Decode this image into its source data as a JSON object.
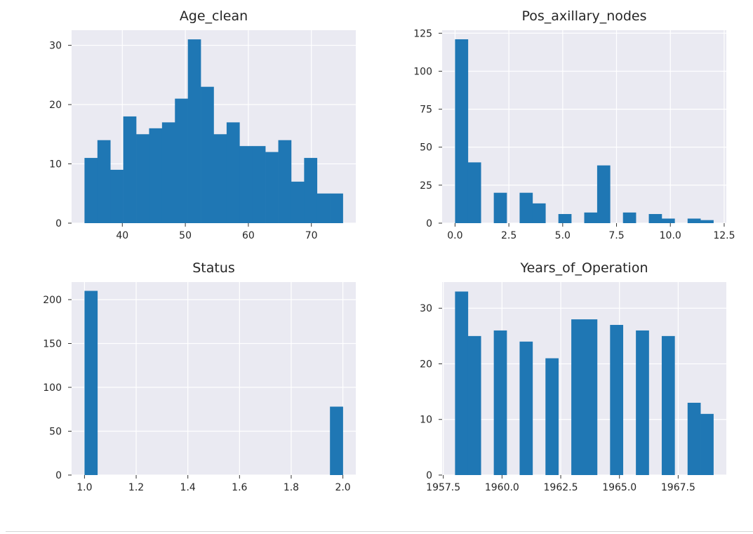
{
  "chart_data": [
    {
      "type": "bar",
      "title": "Age_clean",
      "xlabel": "",
      "ylabel": "",
      "grid": true,
      "xlim": [
        31.95,
        77.05
      ],
      "ylim": [
        0,
        32.55
      ],
      "xticks": [
        40,
        50,
        60,
        70
      ],
      "xtick_labels": [
        "40",
        "50",
        "60",
        "70"
      ],
      "yticks": [
        0,
        10,
        20,
        30
      ],
      "ytick_labels": [
        "0",
        "10",
        "20",
        "30"
      ],
      "bin_start": 34,
      "bin_width": 2.05,
      "values": [
        11,
        14,
        9,
        18,
        15,
        16,
        17,
        21,
        31,
        23,
        15,
        17,
        13,
        13,
        12,
        14,
        7,
        11,
        5,
        5
      ],
      "color": "#1f77b4"
    },
    {
      "type": "bar",
      "title": "Pos_axillary_nodes",
      "xlabel": "",
      "ylabel": "",
      "grid": true,
      "xlim": [
        -0.6,
        12.6
      ],
      "ylim": [
        0,
        127
      ],
      "xticks": [
        0,
        2.5,
        5,
        7.5,
        10,
        12.5
      ],
      "xtick_labels": [
        "0.0",
        "2.5",
        "5.0",
        "7.5",
        "10.0",
        "12.5"
      ],
      "yticks": [
        0,
        25,
        50,
        75,
        100,
        125
      ],
      "ytick_labels": [
        "0",
        "25",
        "50",
        "75",
        "100",
        "125"
      ],
      "bin_start": 0,
      "bin_width": 0.6,
      "values": [
        121,
        40,
        0,
        20,
        0,
        20,
        13,
        0,
        6,
        0,
        7,
        38,
        0,
        7,
        0,
        6,
        3,
        0,
        3,
        2
      ],
      "color": "#1f77b4"
    },
    {
      "type": "bar",
      "title": "Status",
      "xlabel": "",
      "ylabel": "",
      "grid": true,
      "xlim": [
        0.95,
        2.05
      ],
      "ylim": [
        0,
        220
      ],
      "xticks": [
        1.0,
        1.2,
        1.4,
        1.6,
        1.8,
        2.0
      ],
      "xtick_labels": [
        "1.0",
        "1.2",
        "1.4",
        "1.6",
        "1.8",
        "2.0"
      ],
      "yticks": [
        0,
        50,
        100,
        150,
        200
      ],
      "ytick_labels": [
        "0",
        "50",
        "100",
        "150",
        "200"
      ],
      "bin_start": 1,
      "bin_width": 0.05,
      "values": [
        210,
        0,
        0,
        0,
        0,
        0,
        0,
        0,
        0,
        0,
        0,
        0,
        0,
        0,
        0,
        0,
        0,
        0,
        0,
        78
      ],
      "color": "#1f77b4"
    },
    {
      "type": "bar",
      "title": "Years_of_Operation",
      "xlabel": "",
      "ylabel": "",
      "grid": true,
      "xlim": [
        1957.45,
        1969.55
      ],
      "ylim": [
        0,
        34.7
      ],
      "xticks": [
        1957.5,
        1960,
        1962.5,
        1965,
        1967.5
      ],
      "xtick_labels": [
        "1957.5",
        "1960.0",
        "1962.5",
        "1965.0",
        "1967.5"
      ],
      "yticks": [
        0,
        10,
        20,
        30
      ],
      "ytick_labels": [
        "0",
        "10",
        "20",
        "30"
      ],
      "bin_start": 1958,
      "bin_width": 0.55,
      "values": [
        33,
        25,
        0,
        26,
        0,
        24,
        0,
        21,
        0,
        28,
        28,
        0,
        27,
        0,
        26,
        0,
        25,
        0,
        13,
        11
      ],
      "color": "#1f77b4"
    }
  ]
}
